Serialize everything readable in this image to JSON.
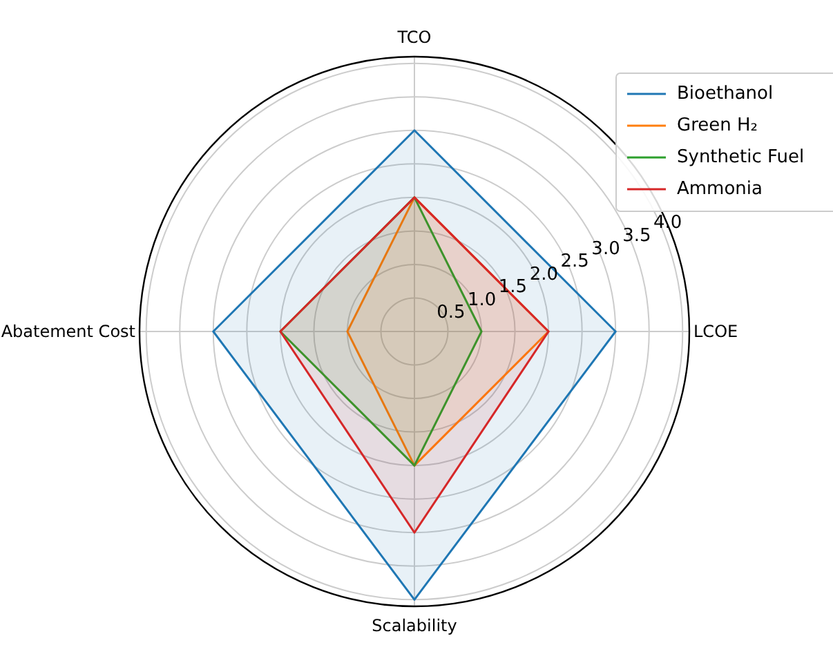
{
  "chart_data": {
    "type": "radar",
    "categories": [
      "TCO",
      "LCOE",
      "Scalability",
      "Abatement Cost"
    ],
    "series": [
      {
        "name": "Bioethanol",
        "color": "#1f77b4",
        "values": [
          3.0,
          3.0,
          4.0,
          3.0
        ]
      },
      {
        "name": "Green H₂",
        "color": "#ff7f0e",
        "values": [
          2.0,
          2.0,
          2.0,
          1.0
        ]
      },
      {
        "name": "Synthetic Fuel",
        "color": "#2ca02c",
        "values": [
          2.0,
          1.0,
          2.0,
          2.0
        ]
      },
      {
        "name": "Ammonia",
        "color": "#d62728",
        "values": [
          2.0,
          2.0,
          3.0,
          2.0
        ]
      }
    ],
    "ylim": [
      0,
      4.1
    ],
    "yticks": [
      0.5,
      {
        "value": 1,
        "label": "1.0"
      },
      1.5,
      {
        "value": 2,
        "label": "2.0"
      },
      2.5,
      {
        "value": 3,
        "label": "3.0"
      },
      3.5,
      {
        "value": 4,
        "label": "4.0"
      }
    ],
    "grid": true,
    "legend": "top right"
  }
}
